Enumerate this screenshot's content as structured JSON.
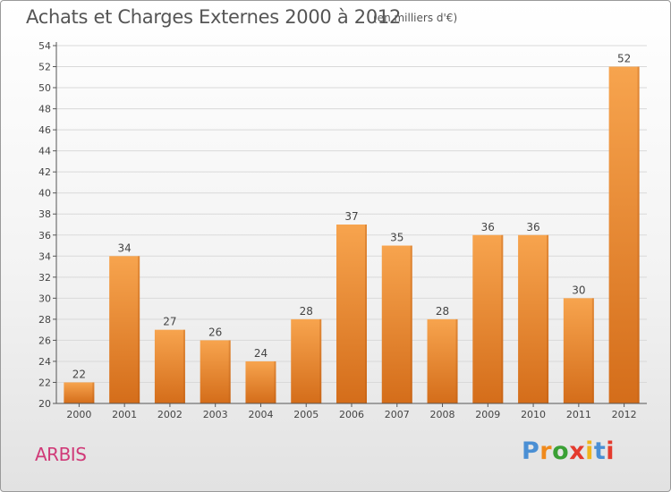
{
  "header": {
    "title": "Achats et Charges Externes 2000 à 2012",
    "subtitle": "(en milliers d'€)"
  },
  "footer": {
    "commune": "ARBIS",
    "logo": "Proxiti"
  },
  "colors": {
    "bar_light": "#f7a44e",
    "bar_dark": "#d46d1a",
    "axis": "#555555",
    "grid": "#d9d9d9",
    "commune": "#d03a78",
    "logo": [
      "#4a8fd4",
      "#f08a1c",
      "#3aa035",
      "#e43b2e",
      "#f0b41c",
      "#4a8fd4",
      "#e43b2e"
    ]
  },
  "chart_data": {
    "type": "bar",
    "title": "Achats et Charges Externes 2000 à 2012",
    "subtitle": "(en milliers d'€)",
    "categories": [
      "2000",
      "2001",
      "2002",
      "2003",
      "2004",
      "2005",
      "2006",
      "2007",
      "2008",
      "2009",
      "2010",
      "2011",
      "2012"
    ],
    "values": [
      22,
      34,
      27,
      26,
      24,
      28,
      37,
      35,
      28,
      36,
      36,
      30,
      52
    ],
    "ylim": [
      20,
      54
    ],
    "yticks": [
      20,
      22,
      24,
      26,
      28,
      30,
      32,
      34,
      36,
      38,
      40,
      42,
      44,
      46,
      48,
      50,
      52,
      54
    ],
    "grid": true,
    "data_labels": true
  }
}
